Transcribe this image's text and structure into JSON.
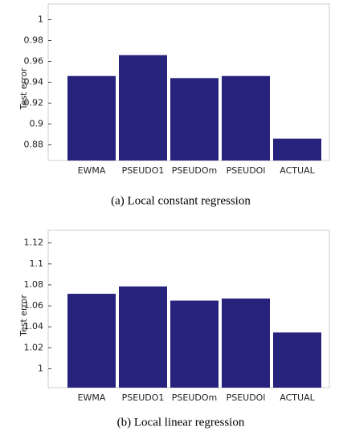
{
  "chart_data": [
    {
      "type": "bar",
      "caption": "(a) Local constant regression",
      "y_label": "Test error",
      "categories": [
        "EWMA",
        "PSEUDO1",
        "PSEUDOm",
        "PSEUDOl",
        "ACTUAL"
      ],
      "values": [
        0.946,
        0.966,
        0.944,
        0.946,
        0.886
      ],
      "color": "#27237d",
      "ylim": [
        0.865,
        1.015
      ],
      "yticks": [
        0.88,
        0.9,
        0.92,
        0.94,
        0.96,
        0.98,
        1
      ]
    },
    {
      "type": "bar",
      "caption": "(b) Local linear regression",
      "y_label": "Test error",
      "categories": [
        "EWMA",
        "PSEUDO1",
        "PSEUDOm",
        "PSEUDOl",
        "ACTUAL"
      ],
      "values": [
        1.0715,
        1.0785,
        1.065,
        1.067,
        1.0346
      ],
      "color": "#27237d",
      "ylim": [
        0.982,
        1.132
      ],
      "yticks": [
        1,
        1.02,
        1.04,
        1.06,
        1.08,
        1.1,
        1.12
      ]
    }
  ]
}
